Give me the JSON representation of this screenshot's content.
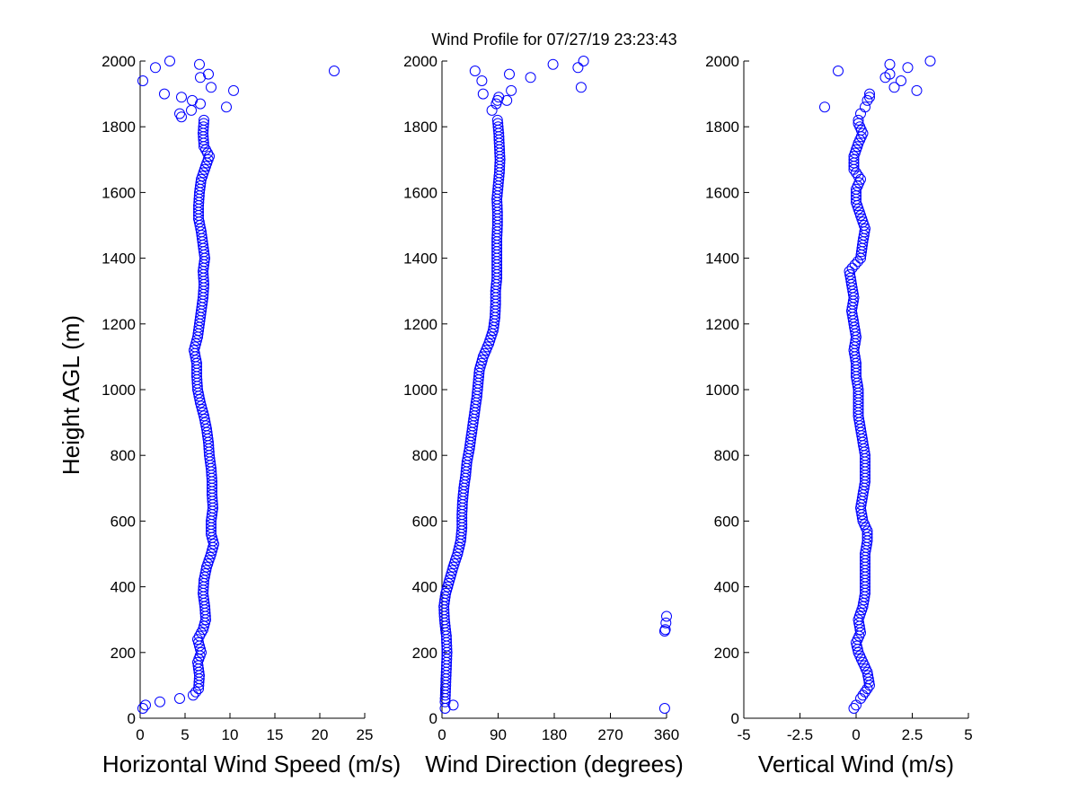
{
  "figure_title": "Wind Profile for  07/27/19 23:23:43",
  "colors": {
    "marker": "#0000ff",
    "axis": "#000000",
    "background": "#ffffff"
  },
  "chart_data": [
    {
      "type": "scatter",
      "title": "Wind Profile for  07/27/19 23:23:43",
      "xlabel": "Horizontal Wind Speed (m/s)",
      "ylabel": "Height AGL (m)",
      "xlim": [
        0,
        25
      ],
      "ylim": [
        0,
        2000
      ],
      "xticks": [
        0,
        5,
        10,
        15,
        20,
        25
      ],
      "xtick_labels": [
        "0",
        "5",
        "10",
        "15",
        "20",
        "25"
      ],
      "yticks": [
        0,
        200,
        400,
        600,
        800,
        1000,
        1200,
        1400,
        1600,
        1800,
        2000
      ],
      "ytick_labels": [
        "0",
        "200",
        "400",
        "600",
        "800",
        "1000",
        "1200",
        "1400",
        "1600",
        "1800",
        "2000"
      ],
      "grid": false,
      "marker": "open-circle",
      "profile_nodes": [
        [
          6.5,
          90
        ],
        [
          6.6,
          130
        ],
        [
          6.4,
          170
        ],
        [
          6.8,
          200
        ],
        [
          6.4,
          240
        ],
        [
          7.0,
          270
        ],
        [
          7.3,
          300
        ],
        [
          7.2,
          340
        ],
        [
          7.0,
          380
        ],
        [
          7.1,
          420
        ],
        [
          7.4,
          460
        ],
        [
          7.9,
          500
        ],
        [
          8.2,
          530
        ],
        [
          7.9,
          560
        ],
        [
          7.9,
          600
        ],
        [
          8.1,
          640
        ],
        [
          8.0,
          680
        ],
        [
          8.0,
          720
        ],
        [
          7.9,
          760
        ],
        [
          7.7,
          800
        ],
        [
          7.6,
          840
        ],
        [
          7.4,
          880
        ],
        [
          7.1,
          920
        ],
        [
          6.7,
          960
        ],
        [
          6.4,
          1000
        ],
        [
          6.3,
          1040
        ],
        [
          6.3,
          1080
        ],
        [
          6.0,
          1120
        ],
        [
          6.4,
          1160
        ],
        [
          6.6,
          1200
        ],
        [
          6.8,
          1240
        ],
        [
          7.0,
          1280
        ],
        [
          7.1,
          1320
        ],
        [
          7.0,
          1360
        ],
        [
          7.2,
          1400
        ],
        [
          7.0,
          1440
        ],
        [
          6.8,
          1480
        ],
        [
          6.5,
          1520
        ],
        [
          6.5,
          1560
        ],
        [
          6.6,
          1600
        ],
        [
          6.8,
          1640
        ],
        [
          7.3,
          1680
        ],
        [
          7.7,
          1710
        ],
        [
          7.1,
          1740
        ],
        [
          7.0,
          1780
        ],
        [
          7.1,
          1820
        ]
      ],
      "outliers": [
        [
          0.3,
          30
        ],
        [
          0.6,
          40
        ],
        [
          2.2,
          50
        ],
        [
          4.4,
          60
        ],
        [
          5.9,
          70
        ],
        [
          6.2,
          80
        ],
        [
          0.3,
          1940
        ],
        [
          1.7,
          1980
        ],
        [
          3.3,
          2000
        ],
        [
          6.6,
          1990
        ],
        [
          7.6,
          1960
        ],
        [
          6.7,
          1950
        ],
        [
          7.9,
          1920
        ],
        [
          10.4,
          1910
        ],
        [
          21.6,
          1970
        ],
        [
          2.7,
          1900
        ],
        [
          4.6,
          1890
        ],
        [
          5.8,
          1880
        ],
        [
          6.7,
          1870
        ],
        [
          9.6,
          1860
        ],
        [
          5.7,
          1850
        ],
        [
          4.4,
          1840
        ],
        [
          4.6,
          1830
        ]
      ]
    },
    {
      "type": "scatter",
      "xlabel": "Wind Direction (degrees)",
      "xlim": [
        0,
        360
      ],
      "ylim": [
        0,
        2000
      ],
      "xticks": [
        0,
        90,
        180,
        270,
        360
      ],
      "xtick_labels": [
        "0",
        "90",
        "180",
        "270",
        "360"
      ],
      "yticks": [
        0,
        200,
        400,
        600,
        800,
        1000,
        1200,
        1400,
        1600,
        1800,
        2000
      ],
      "ytick_labels": [
        "0",
        "200",
        "400",
        "600",
        "800",
        "1000",
        "1200",
        "1400",
        "1600",
        "1800",
        "2000"
      ],
      "grid": false,
      "marker": "open-circle",
      "profile_nodes": [
        [
          5,
          50
        ],
        [
          6,
          100
        ],
        [
          7,
          150
        ],
        [
          8,
          200
        ],
        [
          7,
          250
        ],
        [
          4,
          300
        ],
        [
          3,
          340
        ],
        [
          6,
          380
        ],
        [
          12,
          420
        ],
        [
          18,
          460
        ],
        [
          25,
          500
        ],
        [
          30,
          540
        ],
        [
          32,
          580
        ],
        [
          32,
          620
        ],
        [
          33,
          660
        ],
        [
          35,
          700
        ],
        [
          38,
          740
        ],
        [
          40,
          780
        ],
        [
          44,
          820
        ],
        [
          47,
          860
        ],
        [
          50,
          900
        ],
        [
          53,
          940
        ],
        [
          56,
          980
        ],
        [
          58,
          1020
        ],
        [
          60,
          1060
        ],
        [
          66,
          1100
        ],
        [
          75,
          1140
        ],
        [
          82,
          1180
        ],
        [
          85,
          1220
        ],
        [
          86,
          1260
        ],
        [
          86,
          1300
        ],
        [
          88,
          1340
        ],
        [
          88,
          1380
        ],
        [
          88,
          1420
        ],
        [
          88,
          1460
        ],
        [
          89,
          1500
        ],
        [
          89,
          1540
        ],
        [
          88,
          1580
        ],
        [
          90,
          1620
        ],
        [
          92,
          1660
        ],
        [
          93,
          1700
        ],
        [
          92,
          1740
        ],
        [
          91,
          1780
        ],
        [
          89,
          1820
        ]
      ],
      "outliers": [
        [
          18,
          40
        ],
        [
          5,
          30
        ],
        [
          357,
          30
        ],
        [
          360,
          310
        ],
        [
          359,
          290
        ],
        [
          358,
          270
        ],
        [
          357,
          265
        ],
        [
          53,
          1970
        ],
        [
          64,
          1940
        ],
        [
          108,
          1960
        ],
        [
          178,
          1990
        ],
        [
          227,
          2000
        ],
        [
          218,
          1980
        ],
        [
          223,
          1920
        ],
        [
          142,
          1950
        ],
        [
          111,
          1910
        ],
        [
          66,
          1900
        ],
        [
          91,
          1890
        ],
        [
          89,
          1880
        ],
        [
          104,
          1880
        ],
        [
          80,
          1850
        ],
        [
          87,
          1870
        ]
      ]
    },
    {
      "type": "scatter",
      "xlabel": "Vertical Wind (m/s)",
      "xlim": [
        -5,
        5
      ],
      "ylim": [
        0,
        2000
      ],
      "xticks": [
        -5,
        -2.5,
        0,
        2.5,
        5
      ],
      "xtick_labels": [
        "-5",
        "-2.5",
        "0",
        "2.5",
        "5"
      ],
      "yticks": [
        0,
        200,
        400,
        600,
        800,
        1000,
        1200,
        1400,
        1600,
        1800,
        2000
      ],
      "ytick_labels": [
        "0",
        "200",
        "400",
        "600",
        "800",
        "1000",
        "1200",
        "1400",
        "1600",
        "1800",
        "2000"
      ],
      "grid": false,
      "marker": "open-circle",
      "profile_nodes": [
        [
          0.2,
          60
        ],
        [
          0.4,
          80
        ],
        [
          0.6,
          100
        ],
        [
          0.5,
          140
        ],
        [
          0.3,
          170
        ],
        [
          0.1,
          200
        ],
        [
          0.0,
          230
        ],
        [
          0.2,
          260
        ],
        [
          0.1,
          300
        ],
        [
          0.3,
          340
        ],
        [
          0.4,
          380
        ],
        [
          0.4,
          420
        ],
        [
          0.4,
          460
        ],
        [
          0.4,
          500
        ],
        [
          0.5,
          540
        ],
        [
          0.5,
          570
        ],
        [
          0.3,
          600
        ],
        [
          0.2,
          640
        ],
        [
          0.3,
          680
        ],
        [
          0.4,
          720
        ],
        [
          0.4,
          760
        ],
        [
          0.4,
          800
        ],
        [
          0.3,
          840
        ],
        [
          0.2,
          880
        ],
        [
          0.1,
          920
        ],
        [
          0.1,
          960
        ],
        [
          0.1,
          1000
        ],
        [
          0.0,
          1040
        ],
        [
          0.0,
          1080
        ],
        [
          -0.1,
          1120
        ],
        [
          0.0,
          1160
        ],
        [
          -0.1,
          1200
        ],
        [
          -0.2,
          1240
        ],
        [
          -0.1,
          1280
        ],
        [
          -0.2,
          1320
        ],
        [
          -0.3,
          1360
        ],
        [
          0.2,
          1400
        ],
        [
          0.3,
          1450
        ],
        [
          0.4,
          1490
        ],
        [
          0.2,
          1530
        ],
        [
          0.0,
          1570
        ],
        [
          0.0,
          1610
        ],
        [
          0.2,
          1640
        ],
        [
          -0.1,
          1670
        ],
        [
          -0.1,
          1710
        ],
        [
          0.1,
          1750
        ],
        [
          0.3,
          1780
        ],
        [
          0.1,
          1810
        ]
      ],
      "outliers": [
        [
          -0.1,
          30
        ],
        [
          0.0,
          40
        ],
        [
          -0.8,
          1970
        ],
        [
          1.5,
          1990
        ],
        [
          3.3,
          2000
        ],
        [
          2.3,
          1980
        ],
        [
          1.3,
          1950
        ],
        [
          1.5,
          1960
        ],
        [
          2.0,
          1940
        ],
        [
          1.7,
          1920
        ],
        [
          2.7,
          1910
        ],
        [
          0.6,
          1900
        ],
        [
          0.6,
          1890
        ],
        [
          0.5,
          1880
        ],
        [
          -1.4,
          1860
        ],
        [
          0.4,
          1860
        ],
        [
          0.2,
          1840
        ],
        [
          0.1,
          1820
        ]
      ]
    }
  ]
}
